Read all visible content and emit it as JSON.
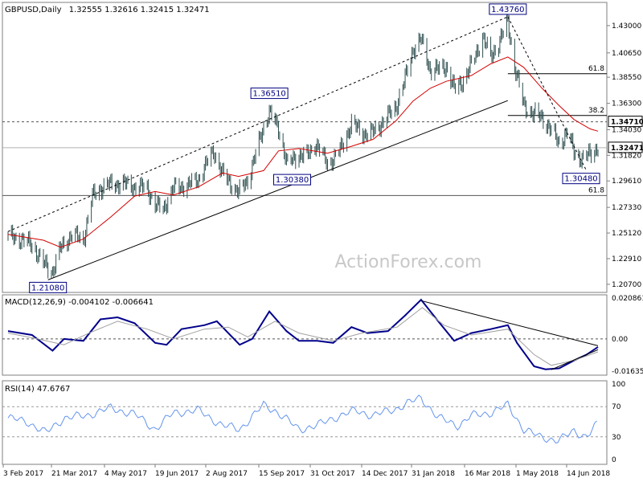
{
  "header": {
    "symbol": "GBPUSD,Daily",
    "ohlc": "1.32555 1.32616 1.32415 1.32471"
  },
  "watermark": "ActionForex.com",
  "colors": {
    "candle": "#2f4f4f",
    "ema": "#d40000",
    "trend": "#000000",
    "macd": "#00008b",
    "signal": "#a0a0a0",
    "rsi": "#6495ed",
    "grid": "#8a8a8a",
    "frame": "#7f7f7f"
  },
  "chart_data": [
    {
      "type": "candlestick",
      "ylim": [
        1.2,
        1.45
      ],
      "y_ticks": [
        {
          "v": 1.43,
          "label": "1.43000"
        },
        {
          "v": 1.4065,
          "label": "1.40650"
        },
        {
          "v": 1.3855,
          "label": "1.38550"
        },
        {
          "v": 1.363,
          "label": "1.36300"
        },
        {
          "v": 1.3403,
          "label": "1.34030"
        },
        {
          "v": 1.3182,
          "label": "1.31820"
        },
        {
          "v": 1.2961,
          "label": "1.29610"
        },
        {
          "v": 1.2733,
          "label": "1.27330"
        },
        {
          "v": 1.2512,
          "label": "1.25120"
        },
        {
          "v": 1.2291,
          "label": "1.22910"
        },
        {
          "v": 1.207,
          "label": "1.20700"
        }
      ],
      "x_labels": [
        "3 Feb 2017",
        "21 Mar 2017",
        "4 May 2017",
        "19 Jun 2017",
        "2 Aug 2017",
        "15 Sep 2017",
        "31 Oct 2017",
        "14 Dec 2017",
        "31 Jan 2018",
        "16 Mar 2018",
        "1 May 2018",
        "14 Jun 2018"
      ],
      "close_path": [
        [
          "2017-02-03",
          1.248
        ],
        [
          "2017-02-14",
          1.246
        ],
        [
          "2017-02-24",
          1.241
        ],
        [
          "2017-03-06",
          1.225
        ],
        [
          "2017-03-14",
          1.218
        ],
        [
          "2017-03-21",
          1.238
        ],
        [
          "2017-03-31",
          1.25
        ],
        [
          "2017-04-10",
          1.245
        ],
        [
          "2017-04-18",
          1.283
        ],
        [
          "2017-04-28",
          1.292
        ],
        [
          "2017-05-04",
          1.293
        ],
        [
          "2017-05-15",
          1.294
        ],
        [
          "2017-05-25",
          1.291
        ],
        [
          "2017-06-05",
          1.29
        ],
        [
          "2017-06-12",
          1.275
        ],
        [
          "2017-06-19",
          1.272
        ],
        [
          "2017-06-28",
          1.29
        ],
        [
          "2017-07-10",
          1.292
        ],
        [
          "2017-07-20",
          1.298
        ],
        [
          "2017-08-02",
          1.322
        ],
        [
          "2017-08-10",
          1.302
        ],
        [
          "2017-08-24",
          1.286
        ],
        [
          "2017-09-01",
          1.297
        ],
        [
          "2017-09-08",
          1.319
        ],
        [
          "2017-09-15",
          1.343
        ],
        [
          "2017-09-20",
          1.356
        ],
        [
          "2017-09-28",
          1.341
        ],
        [
          "2017-10-06",
          1.31
        ],
        [
          "2017-10-16",
          1.319
        ],
        [
          "2017-10-24",
          1.318
        ],
        [
          "2017-10-31",
          1.329
        ],
        [
          "2017-11-10",
          1.31
        ],
        [
          "2017-11-22",
          1.324
        ],
        [
          "2017-12-01",
          1.346
        ],
        [
          "2017-12-11",
          1.337
        ],
        [
          "2017-12-20",
          1.338
        ],
        [
          "2018-01-02",
          1.352
        ],
        [
          "2018-01-09",
          1.36
        ],
        [
          "2018-01-17",
          1.384
        ],
        [
          "2018-01-24",
          1.41
        ],
        [
          "2018-01-31",
          1.418
        ],
        [
          "2018-02-08",
          1.392
        ],
        [
          "2018-02-15",
          1.392
        ],
        [
          "2018-02-22",
          1.395
        ],
        [
          "2018-03-01",
          1.375
        ],
        [
          "2018-03-09",
          1.383
        ],
        [
          "2018-03-16",
          1.396
        ],
        [
          "2018-03-26",
          1.42
        ],
        [
          "2018-04-02",
          1.403
        ],
        [
          "2018-04-10",
          1.417
        ],
        [
          "2018-04-17",
          1.433
        ],
        [
          "2018-04-23",
          1.395
        ],
        [
          "2018-05-01",
          1.361
        ],
        [
          "2018-05-09",
          1.354
        ],
        [
          "2018-05-17",
          1.351
        ],
        [
          "2018-05-24",
          1.341
        ],
        [
          "2018-06-01",
          1.329
        ],
        [
          "2018-06-08",
          1.337
        ],
        [
          "2018-06-14",
          1.322
        ],
        [
          "2018-06-21",
          1.314
        ],
        [
          "2018-06-28",
          1.32
        ],
        [
          "2018-07-05",
          1.3247
        ]
      ],
      "ema_path": [
        [
          "2017-02-03",
          1.25
        ],
        [
          "2017-03-06",
          1.245
        ],
        [
          "2017-03-21",
          1.239
        ],
        [
          "2017-04-10",
          1.246
        ],
        [
          "2017-05-04",
          1.265
        ],
        [
          "2017-05-25",
          1.283
        ],
        [
          "2017-06-12",
          1.287
        ],
        [
          "2017-06-28",
          1.284
        ],
        [
          "2017-07-20",
          1.291
        ],
        [
          "2017-08-10",
          1.303
        ],
        [
          "2017-08-24",
          1.3
        ],
        [
          "2017-09-15",
          1.305
        ],
        [
          "2017-09-28",
          1.322
        ],
        [
          "2017-10-16",
          1.324
        ],
        [
          "2017-11-10",
          1.32
        ],
        [
          "2017-12-01",
          1.326
        ],
        [
          "2017-12-20",
          1.332
        ],
        [
          "2018-01-09",
          1.348
        ],
        [
          "2018-01-24",
          1.365
        ],
        [
          "2018-02-08",
          1.376
        ],
        [
          "2018-02-22",
          1.382
        ],
        [
          "2018-03-16",
          1.387
        ],
        [
          "2018-04-02",
          1.397
        ],
        [
          "2018-04-17",
          1.403
        ],
        [
          "2018-05-01",
          1.394
        ],
        [
          "2018-05-17",
          1.376
        ],
        [
          "2018-06-01",
          1.361
        ],
        [
          "2018-06-14",
          1.349
        ],
        [
          "2018-06-28",
          1.341
        ],
        [
          "2018-07-05",
          1.339
        ]
      ],
      "hlines": [
        {
          "v": 1.3471,
          "style": "dashed",
          "label": "1.34710",
          "boxed": true
        },
        {
          "v": 1.2835,
          "style": "solid",
          "label": "61.8",
          "boxed": false
        },
        {
          "v": 1.32471,
          "style": "solid",
          "color": "#b0b0b0",
          "label": "1.32471",
          "boxed": true
        }
      ],
      "fib_lines": [
        {
          "v": 1.3885,
          "x_start": "2018-04-17",
          "label": "61.8"
        },
        {
          "v": 1.3525,
          "x_start": "2018-04-17",
          "label": "38.2"
        }
      ],
      "trendlines": [
        {
          "points": [
            [
              "2017-03-10",
              1.2108
            ],
            [
              "2018-04-17",
              1.3654
            ]
          ],
          "style": "solid"
        },
        {
          "points": [
            [
              "2017-02-03",
              1.2525
            ],
            [
              "2018-04-17",
              1.4376
            ]
          ],
          "style": "dashed"
        },
        {
          "points": [
            [
              "2018-04-17",
              1.4376
            ],
            [
              "2018-06-25",
              1.3048
            ]
          ],
          "style": "dashed"
        }
      ],
      "annotations": [
        {
          "label": "1.21080",
          "x": "2017-03-10",
          "v": 1.2108,
          "place": "below"
        },
        {
          "label": "1.36510",
          "x": "2017-09-20",
          "v": 1.3651,
          "place": "above"
        },
        {
          "label": "1.30380",
          "x": "2017-10-10",
          "v": 1.3038,
          "place": "below"
        },
        {
          "label": "1.43760",
          "x": "2018-04-17",
          "v": 1.4376,
          "place": "above"
        },
        {
          "label": "1.30480",
          "x": "2018-06-25",
          "v": 1.3048,
          "place": "below"
        }
      ]
    },
    {
      "type": "line",
      "title": "MACD(12,26,9) -0.004102 -0.006641",
      "ylim": [
        -0.0185,
        0.0225
      ],
      "y_ticks": [
        {
          "v": 0.020861,
          "label": "0.020861"
        },
        {
          "v": 0,
          "label": "0.00"
        },
        {
          "v": -0.016357,
          "label": "-0.016357"
        }
      ],
      "series": [
        {
          "role": "macd",
          "points": [
            [
              "2017-02-03",
              0.004
            ],
            [
              "2017-02-24",
              0.002
            ],
            [
              "2017-03-14",
              -0.006
            ],
            [
              "2017-03-24",
              0.0
            ],
            [
              "2017-04-10",
              -0.001
            ],
            [
              "2017-04-25",
              0.01
            ],
            [
              "2017-05-10",
              0.011
            ],
            [
              "2017-05-25",
              0.008
            ],
            [
              "2017-06-12",
              -0.002
            ],
            [
              "2017-06-22",
              -0.003
            ],
            [
              "2017-07-05",
              0.005
            ],
            [
              "2017-07-25",
              0.007
            ],
            [
              "2017-08-05",
              0.009
            ],
            [
              "2017-08-25",
              -0.003
            ],
            [
              "2017-09-05",
              0.0
            ],
            [
              "2017-09-20",
              0.014
            ],
            [
              "2017-10-05",
              0.004
            ],
            [
              "2017-10-16",
              -0.001
            ],
            [
              "2017-11-01",
              -0.001
            ],
            [
              "2017-11-15",
              -0.002
            ],
            [
              "2017-12-01",
              0.006
            ],
            [
              "2017-12-15",
              0.003
            ],
            [
              "2018-01-02",
              0.004
            ],
            [
              "2018-01-17",
              0.012
            ],
            [
              "2018-01-31",
              0.02
            ],
            [
              "2018-02-15",
              0.009
            ],
            [
              "2018-03-01",
              -0.001
            ],
            [
              "2018-03-16",
              0.003
            ],
            [
              "2018-04-02",
              0.005
            ],
            [
              "2018-04-17",
              0.007
            ],
            [
              "2018-04-25",
              -0.002
            ],
            [
              "2018-05-10",
              -0.014
            ],
            [
              "2018-05-20",
              -0.0155
            ],
            [
              "2018-06-01",
              -0.015
            ],
            [
              "2018-06-14",
              -0.011
            ],
            [
              "2018-06-25",
              -0.008
            ],
            [
              "2018-07-05",
              -0.0041
            ]
          ]
        },
        {
          "role": "signal",
          "points": [
            [
              "2017-02-03",
              0.003
            ],
            [
              "2017-03-01",
              0.0
            ],
            [
              "2017-03-24",
              -0.003
            ],
            [
              "2017-04-15",
              0.003
            ],
            [
              "2017-05-10",
              0.009
            ],
            [
              "2017-06-05",
              0.005
            ],
            [
              "2017-06-28",
              0.0
            ],
            [
              "2017-07-25",
              0.005
            ],
            [
              "2017-08-15",
              0.006
            ],
            [
              "2017-09-01",
              0.001
            ],
            [
              "2017-09-25",
              0.009
            ],
            [
              "2017-10-16",
              0.003
            ],
            [
              "2017-11-15",
              -0.001
            ],
            [
              "2017-12-10",
              0.003
            ],
            [
              "2018-01-10",
              0.006
            ],
            [
              "2018-02-01",
              0.016
            ],
            [
              "2018-02-20",
              0.007
            ],
            [
              "2018-03-16",
              0.002
            ],
            [
              "2018-04-17",
              0.005
            ],
            [
              "2018-05-10",
              -0.008
            ],
            [
              "2018-05-25",
              -0.0135
            ],
            [
              "2018-06-14",
              -0.011
            ],
            [
              "2018-07-05",
              -0.0066
            ]
          ]
        }
      ],
      "trendlines": [
        {
          "points": [
            [
              "2018-01-31",
              0.0195
            ],
            [
              "2018-07-05",
              -0.0035
            ]
          ]
        },
        {
          "points": [
            [
              "2018-05-25",
              -0.0157
            ],
            [
              "2018-07-05",
              -0.0055
            ]
          ]
        }
      ]
    },
    {
      "type": "line",
      "title": "RSI(14) 47.6767",
      "ylim": [
        0,
        100
      ],
      "y_ticks": [
        {
          "v": 100,
          "label": "100"
        },
        {
          "v": 70,
          "label": "70"
        },
        {
          "v": 30,
          "label": "30"
        },
        {
          "v": 0,
          "label": "0"
        }
      ],
      "series": [
        {
          "role": "rsi",
          "points": [
            [
              "2017-02-03",
              55
            ],
            [
              "2017-02-20",
              50
            ],
            [
              "2017-03-08",
              35
            ],
            [
              "2017-03-24",
              55
            ],
            [
              "2017-04-12",
              58
            ],
            [
              "2017-05-04",
              68
            ],
            [
              "2017-05-25",
              60
            ],
            [
              "2017-06-12",
              40
            ],
            [
              "2017-06-28",
              62
            ],
            [
              "2017-07-20",
              65
            ],
            [
              "2017-08-10",
              45
            ],
            [
              "2017-08-25",
              40
            ],
            [
              "2017-09-15",
              72
            ],
            [
              "2017-09-25",
              65
            ],
            [
              "2017-10-16",
              40
            ],
            [
              "2017-11-01",
              45
            ],
            [
              "2017-11-15",
              55
            ],
            [
              "2017-12-05",
              65
            ],
            [
              "2017-12-20",
              58
            ],
            [
              "2018-01-10",
              68
            ],
            [
              "2018-01-31",
              82
            ],
            [
              "2018-02-15",
              55
            ],
            [
              "2018-03-05",
              45
            ],
            [
              "2018-03-16",
              58
            ],
            [
              "2018-04-02",
              62
            ],
            [
              "2018-04-17",
              72
            ],
            [
              "2018-05-01",
              40
            ],
            [
              "2018-05-15",
              30
            ],
            [
              "2018-06-01",
              25
            ],
            [
              "2018-06-14",
              38
            ],
            [
              "2018-06-25",
              30
            ],
            [
              "2018-07-05",
              47.7
            ]
          ]
        }
      ]
    }
  ]
}
